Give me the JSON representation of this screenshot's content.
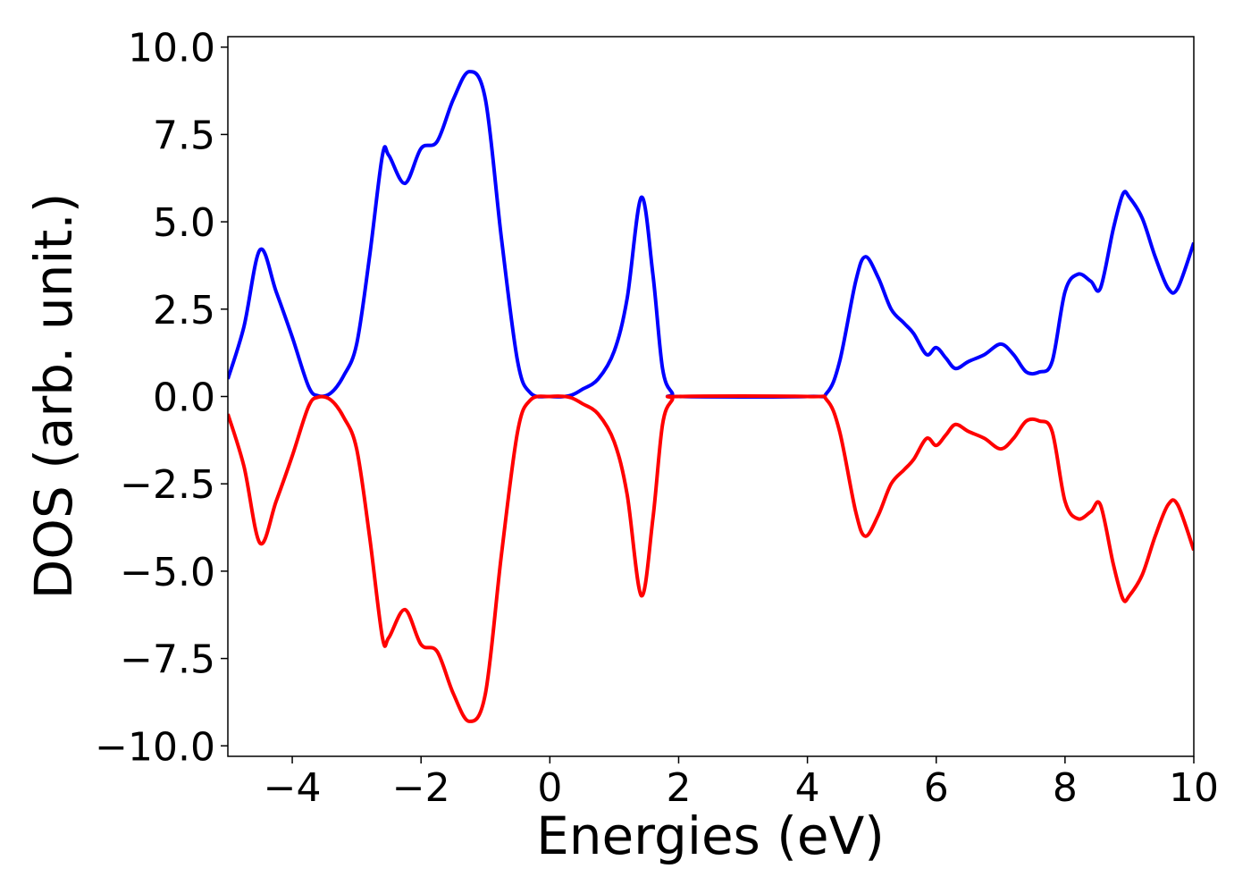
{
  "chart_data": {
    "type": "line",
    "x_label": "Energies (eV)",
    "y_label": "DOS (arb. unit.)",
    "x": [
      -5,
      -4.75,
      -4.5,
      -4.25,
      -4.0,
      -3.75,
      -3.6,
      -3.4,
      -3.2,
      -3.0,
      -2.8,
      -2.6,
      -2.5,
      -2.25,
      -2.0,
      -1.75,
      -1.5,
      -1.25,
      -1.0,
      -0.75,
      -0.5,
      -0.3,
      0,
      0.3,
      0.5,
      0.75,
      1.0,
      1.2,
      1.42,
      1.6,
      1.75,
      1.9,
      2.0,
      4.0,
      4.3,
      4.5,
      4.75,
      4.9,
      5.1,
      5.3,
      5.5,
      5.65,
      5.85,
      6.0,
      6.15,
      6.3,
      6.5,
      6.75,
      7.0,
      7.2,
      7.4,
      7.6,
      7.8,
      8.0,
      8.2,
      8.4,
      8.55,
      8.75,
      8.9,
      9.0,
      9.2,
      9.4,
      9.6,
      9.75,
      10
    ],
    "series": [
      {
        "color": "#0000ff",
        "values": [
          0.5,
          2.0,
          4.2,
          3.0,
          1.7,
          0.3,
          0.02,
          0.1,
          0.6,
          1.5,
          4.0,
          6.9,
          6.9,
          6.1,
          7.1,
          7.3,
          8.5,
          9.3,
          8.5,
          4.5,
          1.0,
          0.1,
          0,
          0.02,
          0.2,
          0.5,
          1.3,
          2.8,
          5.7,
          3.5,
          0.8,
          0.1,
          0,
          0,
          0.1,
          1.0,
          3.3,
          4.0,
          3.4,
          2.5,
          2.1,
          1.8,
          1.2,
          1.4,
          1.1,
          0.8,
          1.0,
          1.2,
          1.5,
          1.2,
          0.7,
          0.7,
          1.0,
          3.0,
          3.5,
          3.3,
          3.1,
          4.8,
          5.8,
          5.7,
          5.1,
          4.0,
          3.1,
          3.1,
          4.4
        ]
      },
      {
        "color": "#ff0000",
        "values": [
          -0.5,
          -2.0,
          -4.2,
          -3.0,
          -1.7,
          -0.3,
          -0.02,
          -0.1,
          -0.6,
          -1.5,
          -4.0,
          -6.9,
          -6.9,
          -6.1,
          -7.1,
          -7.3,
          -8.5,
          -9.3,
          -8.5,
          -4.5,
          -1.0,
          -0.1,
          0,
          -0.02,
          -0.2,
          -0.5,
          -1.3,
          -2.8,
          -5.7,
          -3.5,
          -0.8,
          -0.1,
          0,
          0,
          -0.1,
          -1.0,
          -3.3,
          -4.0,
          -3.4,
          -2.5,
          -2.1,
          -1.8,
          -1.2,
          -1.4,
          -1.1,
          -0.8,
          -1.0,
          -1.2,
          -1.5,
          -1.2,
          -0.7,
          -0.7,
          -1.0,
          -3.0,
          -3.5,
          -3.3,
          -3.1,
          -4.8,
          -5.8,
          -5.7,
          -5.1,
          -4.0,
          -3.1,
          -3.1,
          -4.4
        ]
      }
    ],
    "xlim": [
      -5,
      10
    ],
    "xticks": [
      {
        "value": -4,
        "label": "−4"
      },
      {
        "value": -2,
        "label": "−2"
      },
      0,
      2,
      4,
      6,
      8,
      10
    ],
    "ylim": [
      -10.3,
      10.3
    ],
    "yticks": [
      {
        "value": -10,
        "label": "−10.0"
      },
      {
        "value": -7.5,
        "label": "−7.5"
      },
      {
        "value": -5,
        "label": "−5.0"
      },
      {
        "value": -2.5,
        "label": "−2.5"
      },
      {
        "value": 0,
        "label": "0.0"
      },
      2.5,
      {
        "value": 5,
        "label": "5.0"
      },
      7.5,
      {
        "value": 10,
        "label": "10.0"
      }
    ],
    "grid": false
  }
}
